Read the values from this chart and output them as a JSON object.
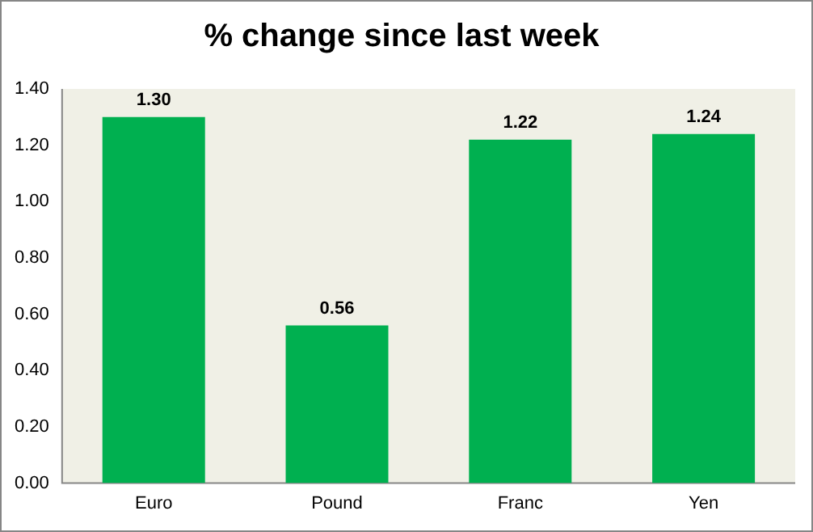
{
  "chart_data": {
    "type": "bar",
    "title": "% change since last week",
    "categories": [
      "Euro",
      "Pound",
      "Franc",
      "Yen"
    ],
    "values": [
      1.3,
      0.56,
      1.22,
      1.24
    ],
    "value_labels": [
      "1.30",
      "0.56",
      "1.22",
      "1.24"
    ],
    "color": "#00b050",
    "ylim": [
      0,
      1.4
    ],
    "yticks": [
      {
        "value": 0,
        "label": "0.00"
      },
      {
        "value": 0.2,
        "label": "0.20"
      },
      {
        "value": 0.4,
        "label": "0.40"
      },
      {
        "value": 0.6,
        "label": "0.60"
      },
      {
        "value": 0.8,
        "label": "0.80"
      },
      {
        "value": 1.0,
        "label": "1.00"
      },
      {
        "value": 1.2,
        "label": "1.20"
      },
      {
        "value": 1.4,
        "label": "1.40"
      }
    ],
    "grid": false,
    "legend": false
  }
}
